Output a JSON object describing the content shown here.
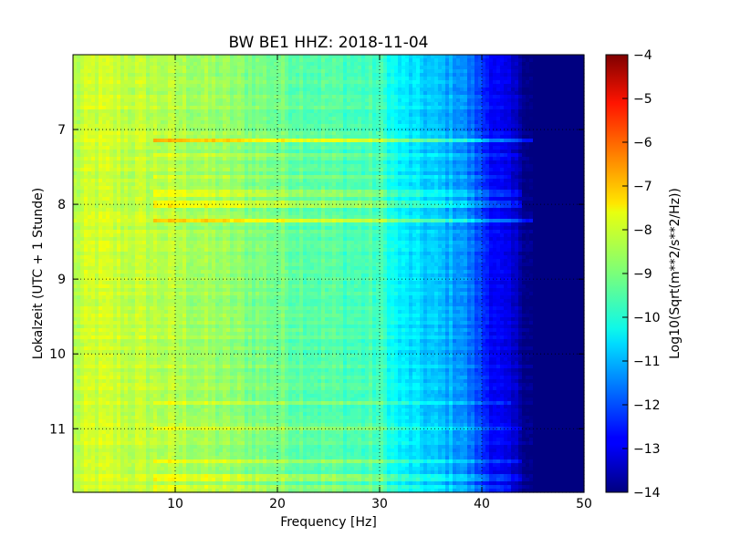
{
  "chart_data": {
    "type": "heatmap",
    "title": "BW BE1 HHZ: 2018-11-04",
    "xlabel": "Frequency [Hz]",
    "ylabel": "Lokalzeit (UTC + 1 Stunde)",
    "xlim": [
      0,
      50
    ],
    "ylim": [
      11.85,
      6.0
    ],
    "y_inverted": true,
    "x_ticks": [
      10,
      20,
      30,
      40,
      50
    ],
    "y_ticks": [
      7,
      8,
      9,
      10,
      11
    ],
    "grid": true,
    "grid_style": "dotted",
    "colormap": "jet",
    "colorbar": {
      "label": "Log10(Sqrt(m**2/s**2/Hz))",
      "range": [
        -14,
        -4
      ],
      "ticks": [
        -4,
        -5,
        -6,
        -7,
        -8,
        -9,
        -10,
        -11,
        -12,
        -13,
        -14
      ]
    },
    "spectral_profile": {
      "frequency_hz": [
        0,
        2,
        5,
        10,
        15,
        20,
        25,
        30,
        32,
        35,
        38,
        40,
        42,
        44,
        45,
        50
      ],
      "log10_level": [
        -8.5,
        -8.2,
        -8.3,
        -8.5,
        -8.8,
        -9.1,
        -9.4,
        -9.6,
        -10.4,
        -10.8,
        -11.2,
        -12.2,
        -13.0,
        -13.6,
        -14.0,
        -14.0
      ]
    },
    "band_lines": [
      {
        "time_hours": 7.15,
        "log10_offset": 1.2,
        "freq_max_hz": 45
      },
      {
        "time_hours": 7.35,
        "log10_offset": 0.5,
        "freq_max_hz": 44
      },
      {
        "time_hours": 7.65,
        "log10_offset": 0.5,
        "freq_max_hz": 43
      },
      {
        "time_hours": 7.85,
        "log10_offset": 0.7,
        "freq_max_hz": 44
      },
      {
        "time_hours": 7.97,
        "log10_offset": 0.8,
        "freq_max_hz": 44
      },
      {
        "time_hours": 8.03,
        "log10_offset": 1.0,
        "freq_max_hz": 44
      },
      {
        "time_hours": 8.2,
        "log10_offset": 1.1,
        "freq_max_hz": 45
      },
      {
        "time_hours": 10.65,
        "log10_offset": 0.4,
        "freq_max_hz": 43
      },
      {
        "time_hours": 11.0,
        "log10_offset": 0.6,
        "freq_max_hz": 44
      },
      {
        "time_hours": 11.42,
        "log10_offset": 0.6,
        "freq_max_hz": 44
      },
      {
        "time_hours": 11.65,
        "log10_offset": 0.5,
        "freq_max_hz": 44
      },
      {
        "time_hours": 11.8,
        "log10_offset": 0.4,
        "freq_max_hz": 43
      }
    ]
  }
}
